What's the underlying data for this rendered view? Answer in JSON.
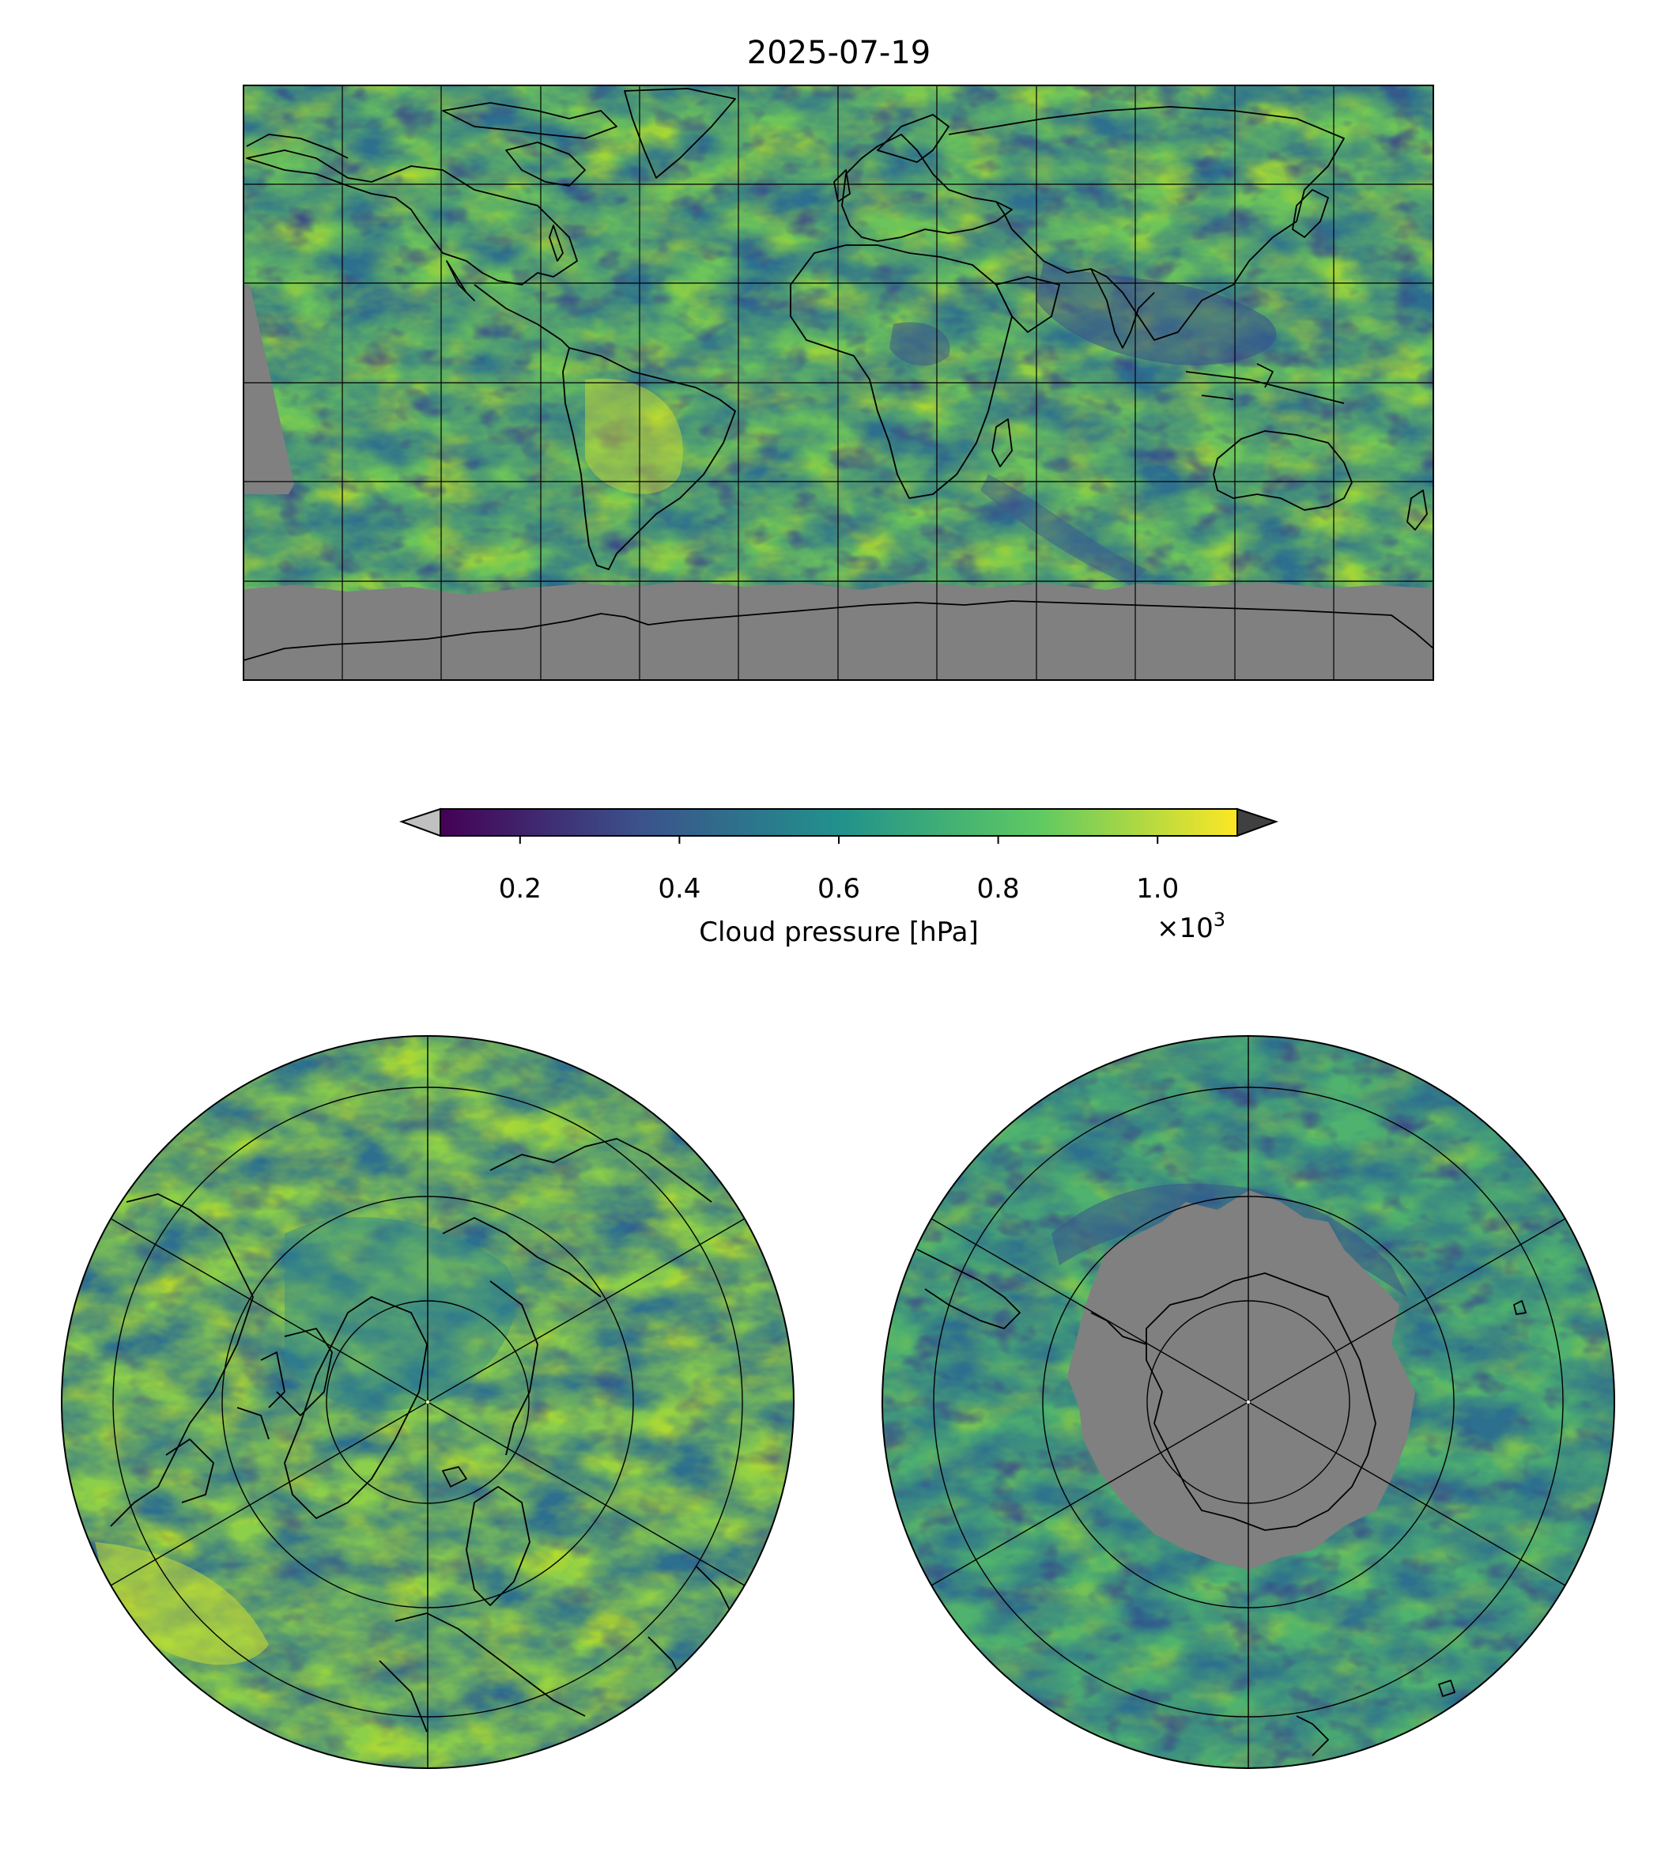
{
  "figure": {
    "title": "2025-07-19"
  },
  "colorbar": {
    "label": "Cloud pressure [hPa]",
    "ticks": [
      "0.2",
      "0.4",
      "0.6",
      "0.8",
      "1.0"
    ],
    "tick_values": [
      0.2,
      0.4,
      0.6,
      0.8,
      1.0
    ],
    "range": [
      0.1,
      1.1
    ],
    "offset_text": "×10",
    "offset_exponent": "3",
    "colormap": "viridis",
    "extend_under_color": "#c0c0c0",
    "extend_over_color": "#404040",
    "colormap_stops": [
      "#440154",
      "#3b528b",
      "#21918c",
      "#5ec962",
      "#fde725"
    ]
  },
  "maps": [
    {
      "name": "global-map",
      "projection": "plate-carree"
    },
    {
      "name": "north-polar-map",
      "projection": "north-polar-stereographic"
    },
    {
      "name": "south-polar-map",
      "projection": "south-polar-stereographic"
    }
  ],
  "colors": {
    "no_data": "#808080",
    "coastline": "#000000",
    "gridline": "#000000"
  }
}
